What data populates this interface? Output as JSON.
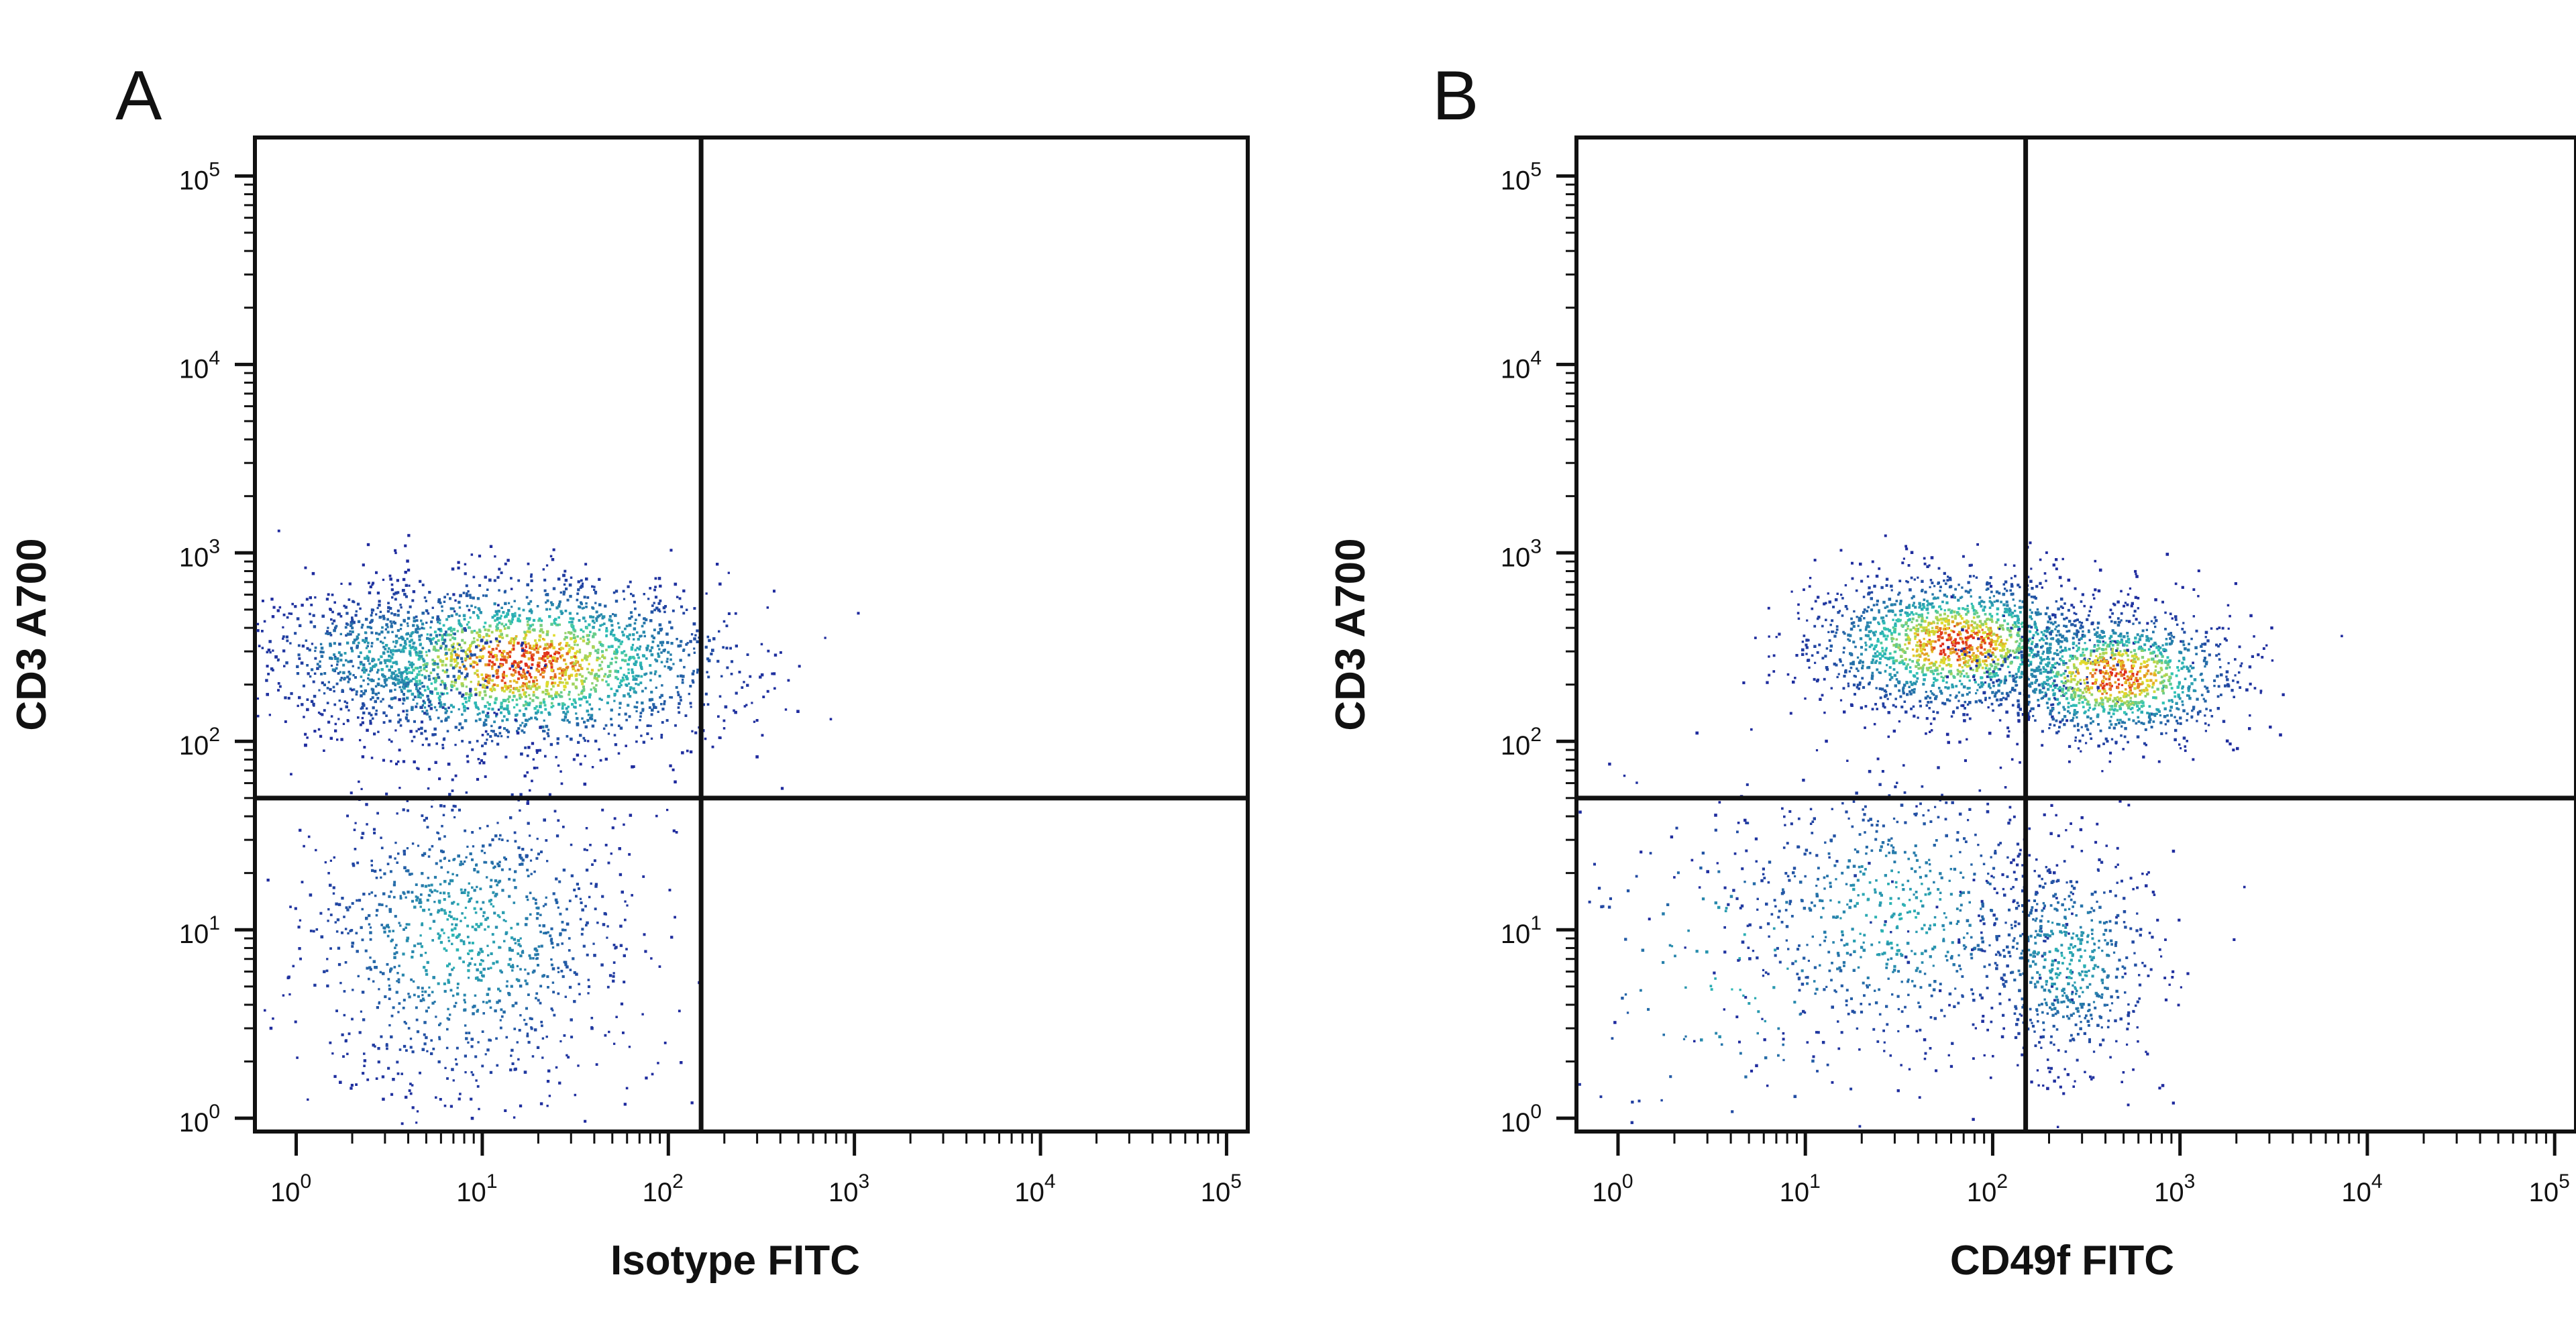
{
  "colors": {
    "frame": "#111111",
    "density_low": "#1f2a9e",
    "density_mid": "#2ec4b6",
    "density_high": "#e0301e"
  },
  "chart_data": [
    {
      "type": "scatter",
      "panel_label": "A",
      "xlabel": "Isotype FITC",
      "ylabel": "CD3 A700",
      "scale": "log",
      "xlim": [
        0.6,
        130000
      ],
      "ylim": [
        0.85,
        160000
      ],
      "xticks": [
        "10^0",
        "10^1",
        "10^2",
        "10^3",
        "10^4",
        "10^5"
      ],
      "yticks": [
        "10^0",
        "10^1",
        "10^2",
        "10^3",
        "10^4",
        "10^5"
      ],
      "gate": {
        "x": 150,
        "y": 50
      },
      "populations": [
        {
          "name": "",
          "x_center": 16,
          "y_center": 260,
          "x_spread_log": 0.55,
          "y_spread_log": 0.22,
          "events": 2600,
          "peak": true
        },
        {
          "name": "",
          "x_center": 3,
          "y_center": 280,
          "x_spread_log": 0.35,
          "y_spread_log": 0.18,
          "events": 500,
          "peak": false
        },
        {
          "name": "",
          "x_center": 8,
          "y_center": 9,
          "x_spread_log": 0.45,
          "y_spread_log": 0.42,
          "events": 1100,
          "peak": false
        }
      ]
    },
    {
      "type": "scatter",
      "panel_label": "B",
      "xlabel": "CD49f FITC",
      "ylabel": "CD3 A700",
      "scale": "log",
      "xlim": [
        0.6,
        130000
      ],
      "ylim": [
        0.85,
        160000
      ],
      "xticks": [
        "10^0",
        "10^1",
        "10^2",
        "10^3",
        "10^4",
        "10^5"
      ],
      "yticks": [
        "10^0",
        "10^1",
        "10^2",
        "10^3",
        "10^4",
        "10^5"
      ],
      "gate": {
        "x": 150,
        "y": 50
      },
      "populations": [
        {
          "name": "",
          "x_center": 65,
          "y_center": 330,
          "x_spread_log": 0.38,
          "y_spread_log": 0.18,
          "events": 1700,
          "peak": true
        },
        {
          "name": "",
          "x_center": 450,
          "y_center": 220,
          "x_spread_log": 0.32,
          "y_spread_log": 0.17,
          "events": 1200,
          "peak": true
        },
        {
          "name": "",
          "x_center": 30,
          "y_center": 12,
          "x_spread_log": 0.45,
          "y_spread_log": 0.38,
          "events": 700,
          "peak": false
        },
        {
          "name": "",
          "x_center": 250,
          "y_center": 7,
          "x_spread_log": 0.25,
          "y_spread_log": 0.3,
          "events": 600,
          "peak": false
        },
        {
          "name": "",
          "x_center": 4,
          "y_center": 6,
          "x_spread_log": 0.5,
          "y_spread_log": 0.5,
          "events": 150,
          "peak": false
        }
      ]
    }
  ]
}
